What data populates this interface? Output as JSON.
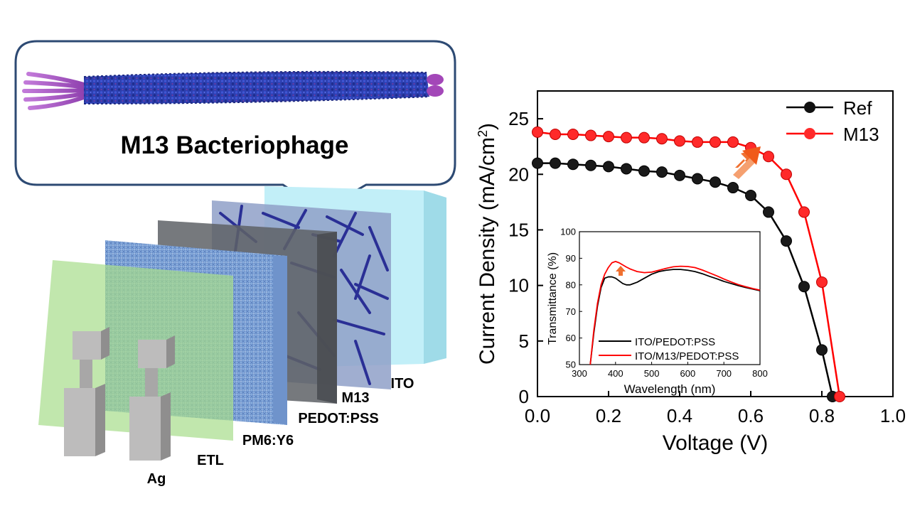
{
  "callout": {
    "title": "M13  Bacteriophage"
  },
  "device_layers": {
    "ag": "Ag",
    "etl": "ETL",
    "active": "PM6:Y6",
    "pedot": "PEDOT:PSS",
    "m13": "M13",
    "ito": "ITO"
  },
  "colors": {
    "ref": "#000000",
    "m13": "#ff0000",
    "arrow": "#f26b2a",
    "ito": "#bfeef7",
    "etl": "#b9e8a0",
    "active": "#7fa6d9",
    "pedot": "#707478",
    "fiber": "#2b2f9a"
  },
  "chart_data": [
    {
      "type": "line",
      "xlabel": "Voltage (V)",
      "ylabel": "Current Density (mA/cm",
      "ylabel_sup": "2",
      "ylabel_close": ")",
      "xlim": [
        0.0,
        1.0
      ],
      "ylim": [
        0,
        27.5
      ],
      "xticks": [
        "0.0",
        "0.2",
        "0.4",
        "0.6",
        "0.8",
        "1.0"
      ],
      "yticks": [
        "0",
        "5",
        "10",
        "15",
        "20",
        "25"
      ],
      "legend": "top-right",
      "series": [
        {
          "name": "Ref",
          "x": [
            0.0,
            0.05,
            0.1,
            0.15,
            0.2,
            0.25,
            0.3,
            0.35,
            0.4,
            0.45,
            0.5,
            0.55,
            0.6,
            0.65,
            0.7,
            0.75,
            0.8,
            0.83
          ],
          "y": [
            21.0,
            21.0,
            20.9,
            20.8,
            20.7,
            20.5,
            20.3,
            20.2,
            19.9,
            19.6,
            19.3,
            18.8,
            18.1,
            16.6,
            14.0,
            9.9,
            4.2,
            0.0
          ]
        },
        {
          "name": "M13",
          "x": [
            0.0,
            0.05,
            0.1,
            0.15,
            0.2,
            0.25,
            0.3,
            0.35,
            0.4,
            0.45,
            0.5,
            0.55,
            0.6,
            0.65,
            0.7,
            0.75,
            0.8,
            0.85
          ],
          "y": [
            23.8,
            23.6,
            23.6,
            23.5,
            23.4,
            23.3,
            23.3,
            23.2,
            23.0,
            22.9,
            22.9,
            22.9,
            22.4,
            21.6,
            20.0,
            16.6,
            10.3,
            0.0
          ]
        }
      ]
    },
    {
      "type": "line",
      "xlabel": "Wavelength (nm)",
      "ylabel": "Transmittance (%)",
      "xlim": [
        300,
        800
      ],
      "ylim": [
        50,
        100
      ],
      "xticks": [
        "300",
        "400",
        "500",
        "600",
        "700",
        "800"
      ],
      "yticks": [
        "50",
        "60",
        "70",
        "80",
        "90",
        "100"
      ],
      "legend": "bottom",
      "series": [
        {
          "name": "ITO/PEDOT:PSS",
          "x": [
            330,
            340,
            350,
            360,
            370,
            380,
            390,
            400,
            410,
            420,
            430,
            440,
            460,
            480,
            500,
            520,
            540,
            560,
            580,
            600,
            620,
            640,
            660,
            680,
            700,
            720,
            740,
            760,
            780,
            800
          ],
          "y": [
            50,
            62,
            72,
            79,
            82.5,
            83,
            83,
            82.5,
            81.5,
            80.5,
            80,
            80,
            81,
            82.5,
            84,
            85,
            85.5,
            85.8,
            85.8,
            85.5,
            85,
            84.2,
            83.2,
            82.3,
            81.3,
            80.5,
            79.7,
            79,
            78.4,
            77.8
          ]
        },
        {
          "name": "ITO/M13/PEDOT:PSS",
          "x": [
            330,
            340,
            350,
            360,
            370,
            380,
            390,
            400,
            410,
            420,
            430,
            440,
            460,
            480,
            500,
            520,
            540,
            560,
            580,
            600,
            620,
            640,
            660,
            680,
            700,
            720,
            740,
            760,
            780,
            800
          ],
          "y": [
            50,
            63,
            73,
            80,
            84,
            86.5,
            88.3,
            88.8,
            88.3,
            87.5,
            86.7,
            86,
            85,
            84.6,
            84.8,
            85.5,
            86.2,
            86.8,
            87,
            86.9,
            86.5,
            85.6,
            84.5,
            83.4,
            82.2,
            81.1,
            80.1,
            79.3,
            78.6,
            78
          ]
        }
      ]
    }
  ]
}
